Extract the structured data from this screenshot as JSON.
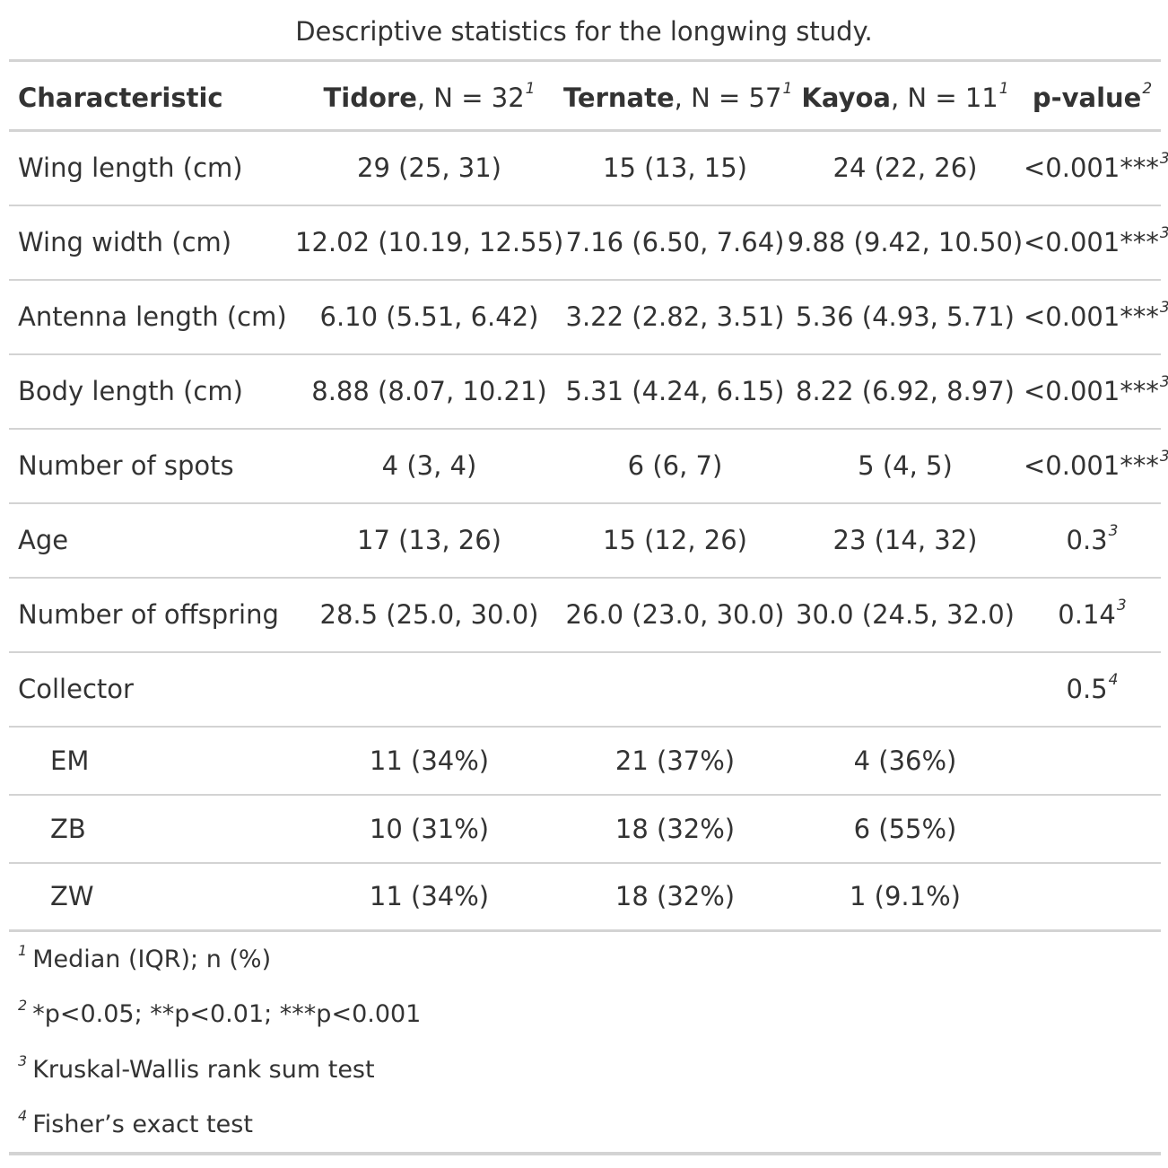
{
  "caption": "Descriptive statistics for the longwing study.",
  "header": {
    "characteristic": "Characteristic",
    "tidore_bold": "Tidore",
    "tidore_n": ", N = 32",
    "tidore_fn": "1",
    "ternate_bold": "Ternate",
    "ternate_n": ", N = 57",
    "ternate_fn": "1",
    "kayoa_bold": "Kayoa",
    "kayoa_n": ", N = 11",
    "kayoa_fn": "1",
    "pvalue": "p-value",
    "pvalue_fn": "2"
  },
  "rows": [
    {
      "label": "Wing length (cm)",
      "tidore": "29 (25, 31)",
      "ternate": "15 (13, 15)",
      "kayoa": "24 (22, 26)",
      "p": "<0.001***",
      "p_fn": "3"
    },
    {
      "label": "Wing width (cm)",
      "tidore": "12.02 (10.19, 12.55)",
      "ternate": "7.16 (6.50, 7.64)",
      "kayoa": "9.88 (9.42, 10.50)",
      "p": "<0.001***",
      "p_fn": "3"
    },
    {
      "label": "Antenna length (cm)",
      "tidore": "6.10 (5.51, 6.42)",
      "ternate": "3.22 (2.82, 3.51)",
      "kayoa": "5.36 (4.93, 5.71)",
      "p": "<0.001***",
      "p_fn": "3"
    },
    {
      "label": "Body length (cm)",
      "tidore": "8.88 (8.07, 10.21)",
      "ternate": "5.31 (4.24, 6.15)",
      "kayoa": "8.22 (6.92, 8.97)",
      "p": "<0.001***",
      "p_fn": "3"
    },
    {
      "label": "Number of spots",
      "tidore": "4 (3, 4)",
      "ternate": "6 (6, 7)",
      "kayoa": "5 (4, 5)",
      "p": "<0.001***",
      "p_fn": "3"
    },
    {
      "label": "Age",
      "tidore": "17 (13, 26)",
      "ternate": "15 (12, 26)",
      "kayoa": "23 (14, 32)",
      "p": "0.3",
      "p_fn": "3"
    },
    {
      "label": "Number of offspring",
      "tidore": "28.5 (25.0, 30.0)",
      "ternate": "26.0 (23.0, 30.0)",
      "kayoa": "30.0 (24.5, 32.0)",
      "p": "0.14",
      "p_fn": "3"
    },
    {
      "label": "Collector",
      "tidore": "",
      "ternate": "",
      "kayoa": "",
      "p": "0.5",
      "p_fn": "4"
    }
  ],
  "collector_levels": [
    {
      "label": "EM",
      "tidore": "11 (34%)",
      "ternate": "21 (37%)",
      "kayoa": "4 (36%)"
    },
    {
      "label": "ZB",
      "tidore": "10 (31%)",
      "ternate": "18 (32%)",
      "kayoa": "6 (55%)"
    },
    {
      "label": "ZW",
      "tidore": "11 (34%)",
      "ternate": "18 (32%)",
      "kayoa": "1 (9.1%)"
    }
  ],
  "footnotes": [
    {
      "mark": "1",
      "text": "Median (IQR); n (%)"
    },
    {
      "mark": "2",
      "text": "*p<0.05; **p<0.01; ***p<0.001"
    },
    {
      "mark": "3",
      "text": "Kruskal-Wallis rank sum test"
    },
    {
      "mark": "4",
      "text": "Fisher’s exact test"
    }
  ]
}
